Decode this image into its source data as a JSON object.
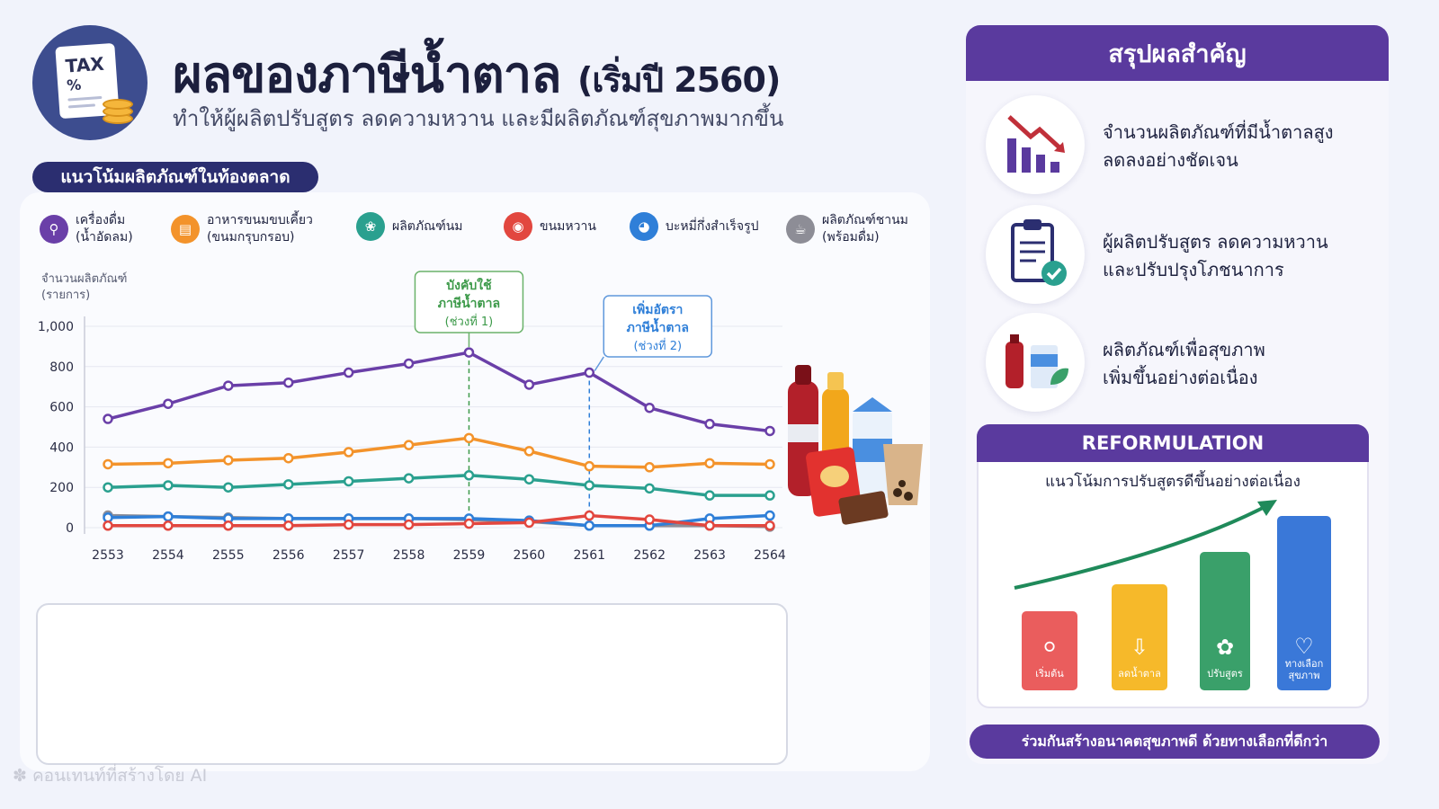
{
  "header": {
    "title": "ผลของภาษีน้ำตาล",
    "title_suffix": "(เริ่มปี 2560)",
    "subtitle": "ทำให้ผู้ผลิตปรับสูตร ลดความหวาน และมีผลิตภัณฑ์สุขภาพมากขึ้น",
    "badge_line1": "TAX",
    "badge_line2": "%"
  },
  "section_pill": "แนวโน้มผลิตภัณฑ์ในท้องตลาด",
  "legend": [
    {
      "label": "เครื่องดื่ม\n(น้ำอัดลม)",
      "color": "#6a3fa8",
      "icon": "straw-icon"
    },
    {
      "label": "อาหารขนมขบเคี้ยว\n(ขนมกรุบกรอบ)",
      "color": "#f3932b",
      "icon": "snack-icon"
    },
    {
      "label": "ผลิตภัณฑ์นม",
      "color": "#2aa08f",
      "icon": "milk-icon"
    },
    {
      "label": "ขนมหวาน",
      "color": "#e2473f",
      "icon": "cake-icon"
    },
    {
      "label": "บะหมี่กึ่งสำเร็จรูป",
      "color": "#2f7fd8",
      "icon": "bowl-icon"
    },
    {
      "label": "ผลิตภัณฑ์ชานม\n(พร้อมดื่ม)",
      "color": "#8d8d96",
      "icon": "tea-icon"
    }
  ],
  "chart_data": {
    "type": "line",
    "ylabel": "จำนวนผลิตภัณฑ์\n(รายการ)",
    "ylim": [
      0,
      1000
    ],
    "yticks": [
      0,
      200,
      400,
      600,
      800,
      1000
    ],
    "ytick_labels": [
      "0",
      "200",
      "400",
      "600",
      "800",
      "1,000"
    ],
    "x": [
      "2553",
      "2554",
      "2555",
      "2556",
      "2557",
      "2558",
      "2559",
      "2560",
      "2561",
      "2562",
      "2563",
      "2564"
    ],
    "series": [
      {
        "name": "เครื่องดื่ม (น้ำอัดลม)",
        "color": "#6a3fa8",
        "values": [
          540,
          615,
          705,
          720,
          770,
          815,
          870,
          710,
          770,
          595,
          515,
          480
        ]
      },
      {
        "name": "อาหารขนมขบเคี้ยว (ขนมกรุบกรอบ)",
        "color": "#f3932b",
        "values": [
          315,
          320,
          335,
          345,
          375,
          410,
          445,
          380,
          305,
          300,
          320,
          315
        ]
      },
      {
        "name": "ผลิตภัณฑ์นม",
        "color": "#2aa08f",
        "values": [
          200,
          210,
          200,
          215,
          230,
          245,
          260,
          240,
          210,
          195,
          160,
          160
        ]
      },
      {
        "name": "ผลิตภัณฑ์ชานม (พร้อมดื่ม)",
        "color": "#8d8d96",
        "values": [
          60,
          55,
          50,
          45,
          45,
          45,
          40,
          30,
          10,
          10,
          10,
          5
        ]
      },
      {
        "name": "บะหมี่กึ่งสำเร็จรูป",
        "color": "#2f7fd8",
        "values": [
          50,
          55,
          45,
          45,
          45,
          45,
          45,
          35,
          10,
          10,
          45,
          60
        ]
      },
      {
        "name": "ขนมหวาน",
        "color": "#e2473f",
        "values": [
          10,
          10,
          10,
          10,
          15,
          15,
          20,
          25,
          60,
          40,
          10,
          10
        ]
      }
    ],
    "annotations": [
      {
        "at": "2559",
        "lines": [
          "บังคับใช้",
          "ภาษีน้ำตาล",
          "(ช่วงที่ 1)"
        ],
        "color": "#3d9a4a",
        "border": "#6ab26a"
      },
      {
        "at": "2561",
        "lines": [
          "เพิ่มอัตรา",
          "ภาษีน้ำตาล",
          "(ช่วงที่ 2)"
        ],
        "color": "#2f7fd8",
        "border": "#5f98dc"
      }
    ]
  },
  "summary": {
    "heading": "สรุปผลสำคัญ",
    "items": [
      {
        "text": "จำนวนผลิตภัณฑ์ที่มีน้ำตาลสูง\nลดลงอย่างชัดเจน",
        "icon": "declining-bar-chart-icon"
      },
      {
        "text": "ผู้ผลิตปรับสูตร ลดความหวาน\nและปรับปรุงโภชนาการ",
        "icon": "clipboard-check-icon"
      },
      {
        "text": "ผลิตภัณฑ์เพื่อสุขภาพ\nเพิ่มขึ้นอย่างต่อเนื่อง",
        "icon": "healthy-drinks-icon"
      }
    ]
  },
  "reformulation": {
    "heading": "REFORMULATION",
    "subtitle": "แนวโน้มการปรับสูตรดีขึ้นอย่างต่อเนื่อง",
    "bars": [
      {
        "label": "เริ่มต้น",
        "color": "#ea5d5d",
        "icon": "spoon-icon"
      },
      {
        "label": "ลดน้ำตาล",
        "color": "#f6b92a",
        "icon": "down-arrow-icon"
      },
      {
        "label": "ปรับสูตร",
        "color": "#3aa06a",
        "icon": "leaf-icon"
      },
      {
        "label": "ทางเลือก\nสุขภาพ",
        "color": "#3a78d8",
        "icon": "heart-icon"
      }
    ]
  },
  "footer": "ร่วมกันสร้างอนาคตสุขภาพดี ด้วยทางเลือกที่ดีกว่า",
  "watermark": "คอนเทนท์ที่สร้างโดย AI"
}
